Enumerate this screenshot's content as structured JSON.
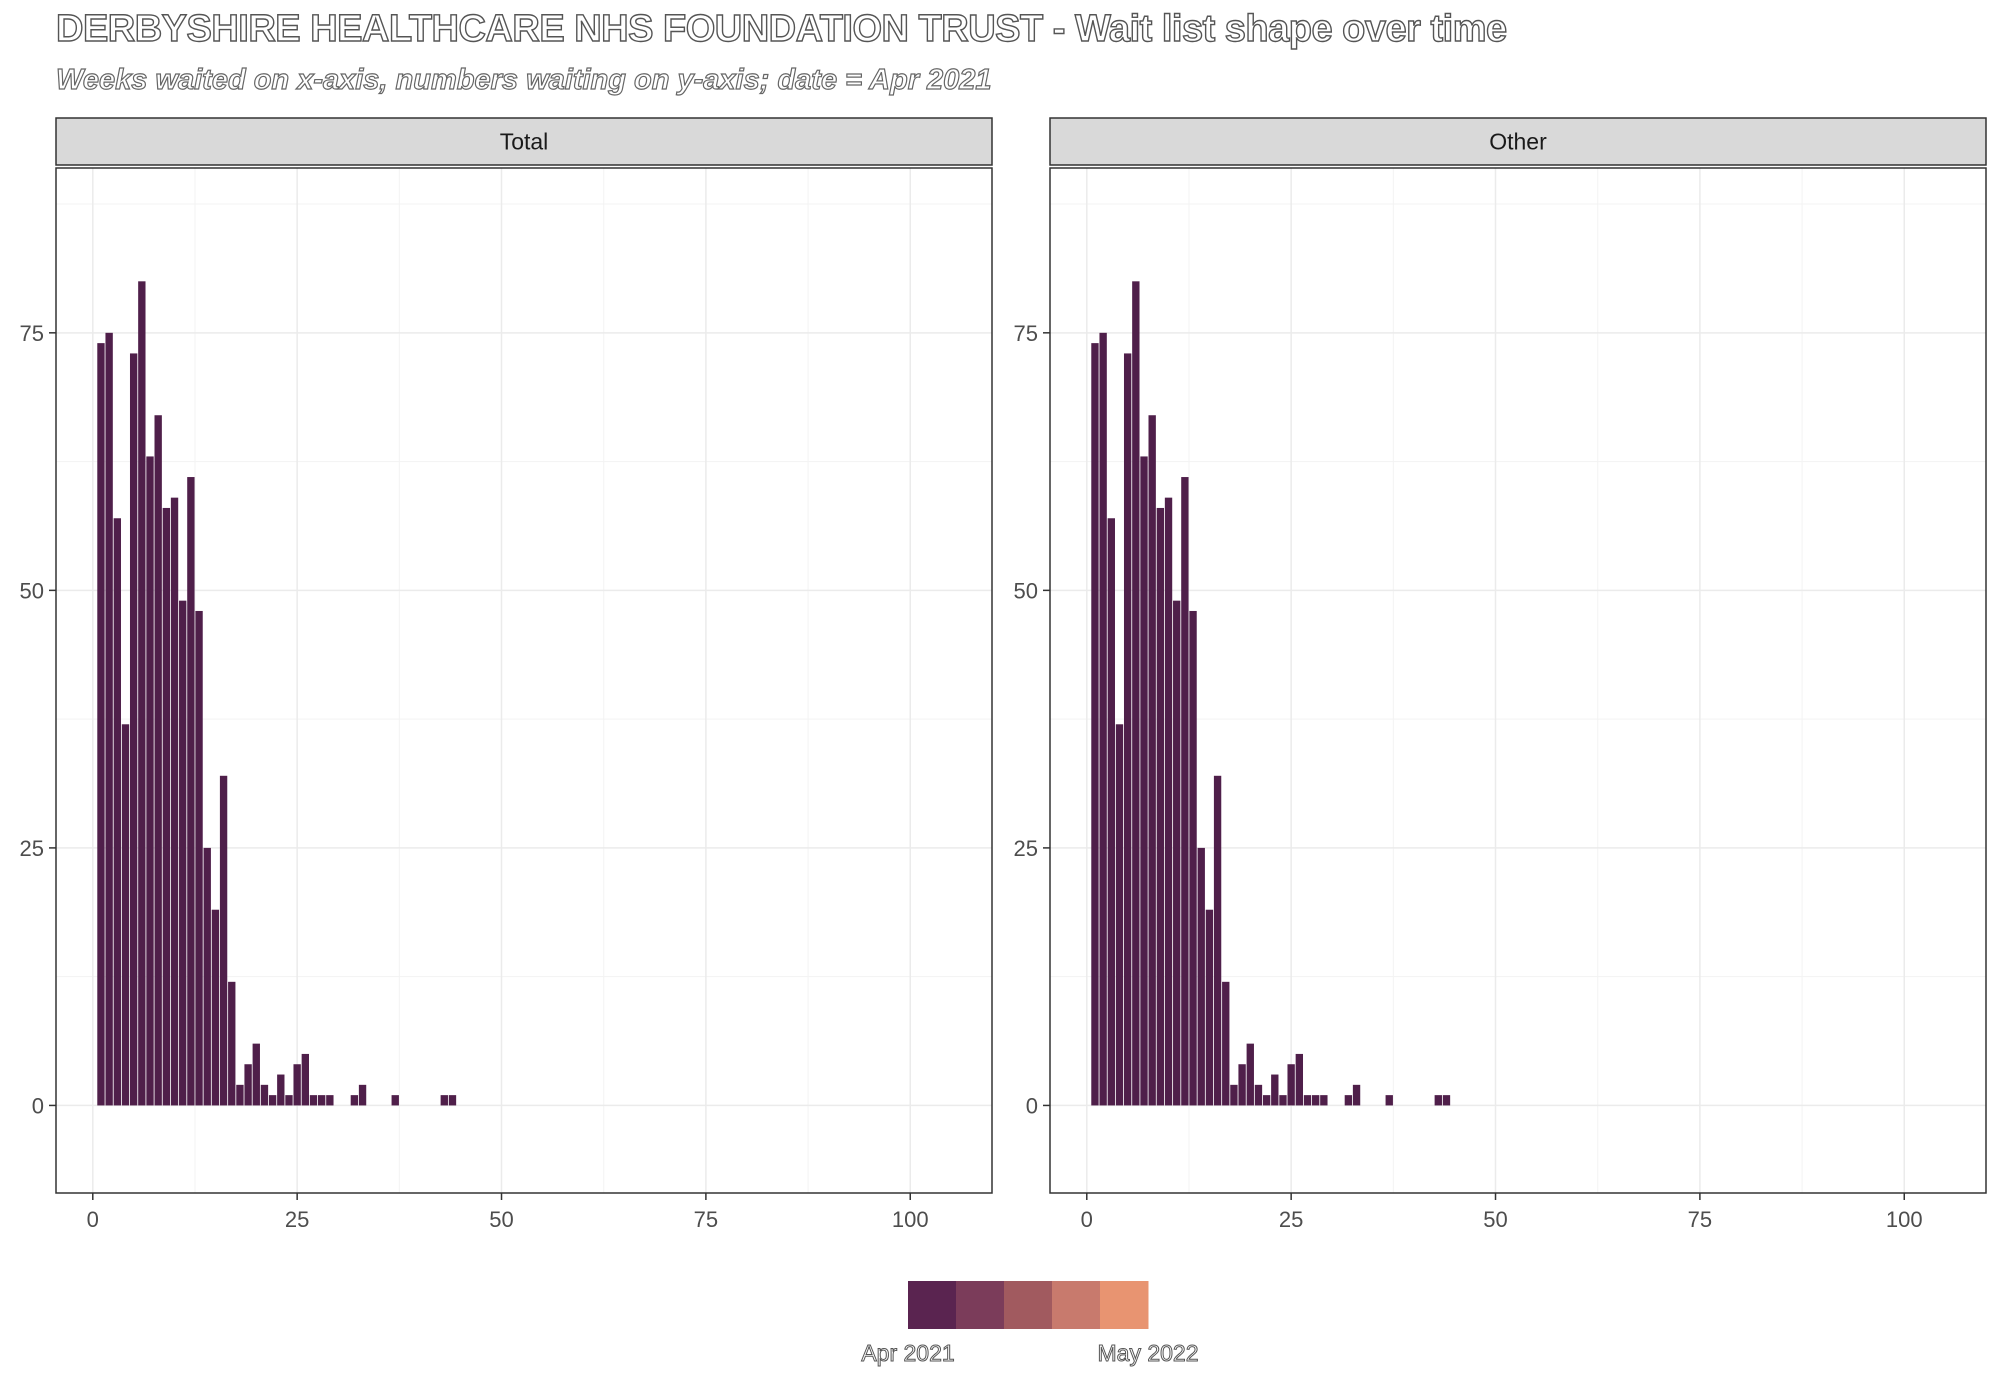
{
  "title": "DERBYSHIRE HEALTHCARE NHS FOUNDATION TRUST - Wait list shape over time",
  "subtitle": "Weeks waited on x-axis, numbers waiting on y-axis; date = Apr 2021",
  "colors": {
    "bar": "#4f1f4a",
    "strip": "#d9d9d9",
    "grid": "#ebebeb"
  },
  "legend": {
    "start_label": "Apr 2021",
    "end_label": "May 2022",
    "swatches": [
      "#5a2450",
      "#7b3c5a",
      "#a15a5f",
      "#c87a6d",
      "#e89471"
    ]
  },
  "chart_data": [
    {
      "type": "bar",
      "panel": "Total",
      "xlim": [
        -4.5,
        110
      ],
      "ylim": [
        -8.5,
        91
      ],
      "xticks": [
        0,
        25,
        50,
        75,
        100
      ],
      "yticks": [
        0,
        25,
        50,
        75
      ],
      "grid": true,
      "x": [
        1,
        2,
        3,
        4,
        5,
        6,
        7,
        8,
        9,
        10,
        11,
        12,
        13,
        14,
        15,
        16,
        17,
        18,
        19,
        20,
        21,
        22,
        23,
        24,
        25,
        26,
        27,
        28,
        29,
        32,
        33,
        37,
        43,
        44
      ],
      "values": [
        74,
        75,
        57,
        37,
        73,
        80,
        63,
        67,
        58,
        59,
        49,
        61,
        48,
        25,
        19,
        32,
        12,
        2,
        4,
        6,
        2,
        1,
        3,
        1,
        4,
        5,
        1,
        1,
        1,
        1,
        2,
        1,
        1,
        1
      ]
    },
    {
      "type": "bar",
      "panel": "Other",
      "xlim": [
        -4.5,
        110
      ],
      "ylim": [
        -8.5,
        91
      ],
      "xticks": [
        0,
        25,
        50,
        75,
        100
      ],
      "yticks": [
        0,
        25,
        50,
        75
      ],
      "grid": true,
      "x": [
        1,
        2,
        3,
        4,
        5,
        6,
        7,
        8,
        9,
        10,
        11,
        12,
        13,
        14,
        15,
        16,
        17,
        18,
        19,
        20,
        21,
        22,
        23,
        24,
        25,
        26,
        27,
        28,
        29,
        32,
        33,
        37,
        43,
        44
      ],
      "values": [
        74,
        75,
        57,
        37,
        73,
        80,
        63,
        67,
        58,
        59,
        49,
        61,
        48,
        25,
        19,
        32,
        12,
        2,
        4,
        6,
        2,
        1,
        3,
        1,
        4,
        5,
        1,
        1,
        1,
        1,
        2,
        1,
        1,
        1
      ]
    }
  ]
}
